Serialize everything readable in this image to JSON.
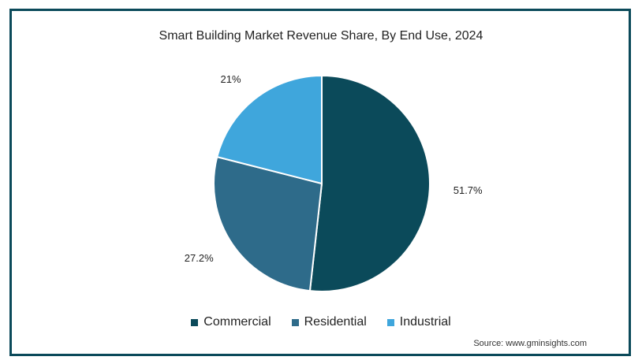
{
  "chart_data": {
    "type": "pie",
    "title": "Smart Building Market Revenue Share, By End Use, 2024",
    "slices": [
      {
        "name": "Commercial",
        "value": 51.7,
        "label": "51.7%",
        "color": "#0b4a5a"
      },
      {
        "name": "Residential",
        "value": 27.2,
        "label": "27.2%",
        "color": "#2e6b8a"
      },
      {
        "name": "Industrial",
        "value": 21,
        "label": "21%",
        "color": "#3fa6dc"
      }
    ],
    "legend_position": "bottom"
  },
  "source": "Source: www.gminsights.com"
}
